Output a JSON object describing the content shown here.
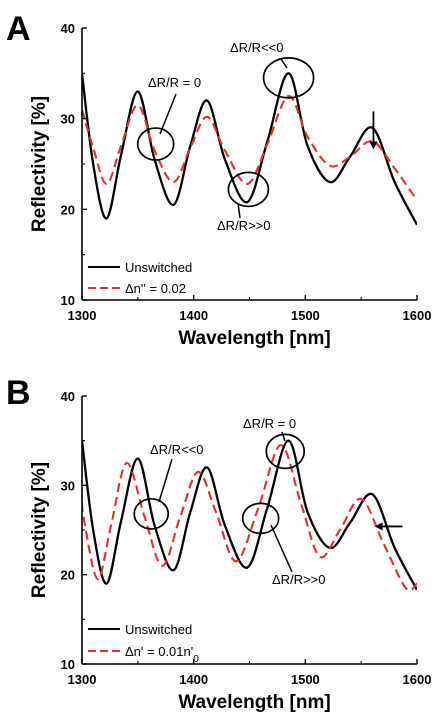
{
  "chart_data": [
    {
      "panel": "A",
      "type": "line",
      "xlabel": "Wavelength [nm]",
      "ylabel": "Reflectivity [%]",
      "xlim": [
        1300,
        1600
      ],
      "ylim": [
        10,
        40
      ],
      "xticks": [
        1300,
        1400,
        1500,
        1600
      ],
      "yticks": [
        10,
        20,
        30,
        40
      ],
      "legend_position": "bottom-left",
      "series": [
        {
          "name": "Unswitched",
          "style": "solid",
          "color": "#000000",
          "x": [
            1300,
            1310,
            1322,
            1335,
            1350,
            1365,
            1382,
            1397,
            1412,
            1428,
            1448,
            1466,
            1485,
            1502,
            1522,
            1540,
            1560,
            1580,
            1600
          ],
          "y": [
            35,
            25,
            19,
            26,
            33,
            25.5,
            20.5,
            27,
            32,
            25.5,
            20.8,
            27.5,
            35,
            27,
            23,
            25.8,
            29,
            23,
            18.3
          ]
        },
        {
          "name": "Δn'' = 0.02",
          "style": "dashed",
          "color": "#e03030",
          "x": [
            1300,
            1310,
            1322,
            1335,
            1350,
            1365,
            1382,
            1397,
            1412,
            1428,
            1448,
            1466,
            1485,
            1502,
            1522,
            1540,
            1560,
            1580,
            1600
          ],
          "y": [
            31,
            26.8,
            22.8,
            27,
            31.5,
            26.5,
            23,
            26.8,
            30.2,
            26.5,
            22.8,
            27.2,
            32.5,
            28,
            24.8,
            25.8,
            27.5,
            24.5,
            21
          ]
        }
      ],
      "annotations": [
        {
          "text": "ΔR/R = 0",
          "x": 1366,
          "y": 27.2
        },
        {
          "text": "ΔR/R<<0",
          "x": 1485,
          "y": 34.5
        },
        {
          "text": "ΔR/R>>0",
          "x": 1449,
          "y": 22.2
        }
      ]
    },
    {
      "panel": "B",
      "type": "line",
      "xlabel": "Wavelength [nm]",
      "ylabel": "Reflectivity [%]",
      "xlim": [
        1300,
        1600
      ],
      "ylim": [
        10,
        40
      ],
      "xticks": [
        1300,
        1400,
        1500,
        1600
      ],
      "yticks": [
        10,
        20,
        30,
        40
      ],
      "legend_position": "bottom-left",
      "series": [
        {
          "name": "Unswitched",
          "style": "solid",
          "color": "#000000",
          "x": [
            1300,
            1310,
            1322,
            1335,
            1350,
            1365,
            1382,
            1397,
            1412,
            1428,
            1448,
            1466,
            1485,
            1502,
            1522,
            1540,
            1560,
            1580,
            1600
          ],
          "y": [
            35,
            25,
            19,
            26,
            33,
            25.5,
            20.5,
            27,
            32,
            25.5,
            20.8,
            27.5,
            35,
            27,
            23,
            25.8,
            29,
            23,
            18.3
          ]
        },
        {
          "name": "Δn' = 0.01n'",
          "name_subscript": "0",
          "style": "dashed",
          "color": "#e03030",
          "x": [
            1300,
            1302,
            1314,
            1326,
            1340,
            1356,
            1372,
            1388,
            1404,
            1420,
            1438,
            1458,
            1478,
            1496,
            1513,
            1531,
            1550,
            1570,
            1590,
            1600
          ],
          "y": [
            28,
            26,
            19.5,
            25.5,
            32.5,
            26.5,
            21,
            26.5,
            31.5,
            27,
            21.5,
            27.5,
            34.5,
            28,
            22,
            25,
            28.5,
            23.5,
            18.5,
            19
          ]
        }
      ],
      "annotations": [
        {
          "text": "ΔR/R<<0",
          "x": 1362,
          "y": 26.8
        },
        {
          "text": "ΔR/R = 0",
          "x": 1482,
          "y": 33.8
        },
        {
          "text": "ΔR/R>>0",
          "x": 1460,
          "y": 26.3
        }
      ]
    }
  ]
}
